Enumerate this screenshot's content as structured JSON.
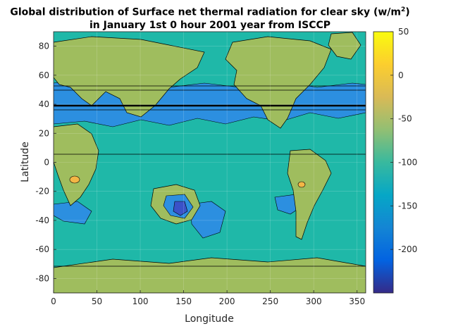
{
  "chart_data": {
    "type": "heatmap",
    "title_line1": "Global distribution of Surface net thermal radiation for clear sky (w/m",
    "title_sup": "2",
    "title_line1_end": ")",
    "title_line2": "in January 1st 0 hour 2001 year from ISCCP",
    "xlabel": "Longitude",
    "ylabel": "Latitude",
    "xlim": [
      0,
      360
    ],
    "ylim": [
      -90,
      90
    ],
    "xticks": [
      0,
      50,
      100,
      150,
      200,
      250,
      300,
      350
    ],
    "yticks": [
      -80,
      -60,
      -40,
      -20,
      0,
      20,
      40,
      60,
      80
    ],
    "colorbar": {
      "range": [
        -250,
        50
      ],
      "ticks": [
        50,
        0,
        -50,
        -100,
        -150,
        -200
      ],
      "colormap": "parula"
    },
    "levels": [
      {
        "value": -100,
        "color": "#1fb8a8",
        "description": "ocean background"
      },
      {
        "value": -65,
        "color": "#9fbd5e",
        "description": "land areas"
      },
      {
        "value": -145,
        "color": "#2c8fe0",
        "description": "mid-latitude cooling bands"
      },
      {
        "value": -200,
        "color": "#3a52c8",
        "description": "Australian interior minimum"
      },
      {
        "value": -20,
        "color": "#f3b645",
        "description": "small warm spots"
      }
    ],
    "grid": true
  }
}
